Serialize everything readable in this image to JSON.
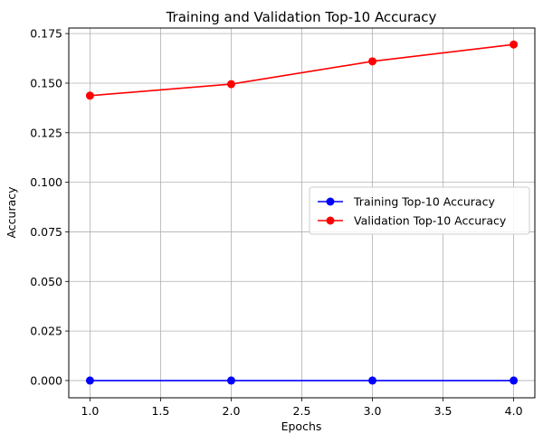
{
  "chart_data": {
    "type": "line",
    "title": "Training and Validation Top-10 Accuracy",
    "xlabel": "Epochs",
    "ylabel": "Accuracy",
    "x": [
      1,
      2,
      3,
      4
    ],
    "xlim": [
      0.85,
      4.15
    ],
    "ylim": [
      -0.0087,
      0.1778
    ],
    "xticks": [
      1.0,
      1.5,
      2.0,
      2.5,
      3.0,
      3.5,
      4.0
    ],
    "xtick_labels": [
      "1.0",
      "1.5",
      "2.0",
      "2.5",
      "3.0",
      "3.5",
      "4.0"
    ],
    "yticks": [
      0.0,
      0.025,
      0.05,
      0.075,
      0.1,
      0.125,
      0.15,
      0.175
    ],
    "ytick_labels": [
      "0.000",
      "0.025",
      "0.050",
      "0.075",
      "0.100",
      "0.125",
      "0.150",
      "0.175"
    ],
    "grid": true,
    "legend_position": "center-right",
    "series": [
      {
        "name": "Training Top-10 Accuracy",
        "color": "#0000ff",
        "marker": "circle",
        "values": [
          0.0,
          0.0,
          0.0,
          0.0
        ]
      },
      {
        "name": "Validation Top-10 Accuracy",
        "color": "#ff0000",
        "marker": "circle",
        "values": [
          0.1437,
          0.1495,
          0.161,
          0.1695
        ]
      }
    ]
  }
}
